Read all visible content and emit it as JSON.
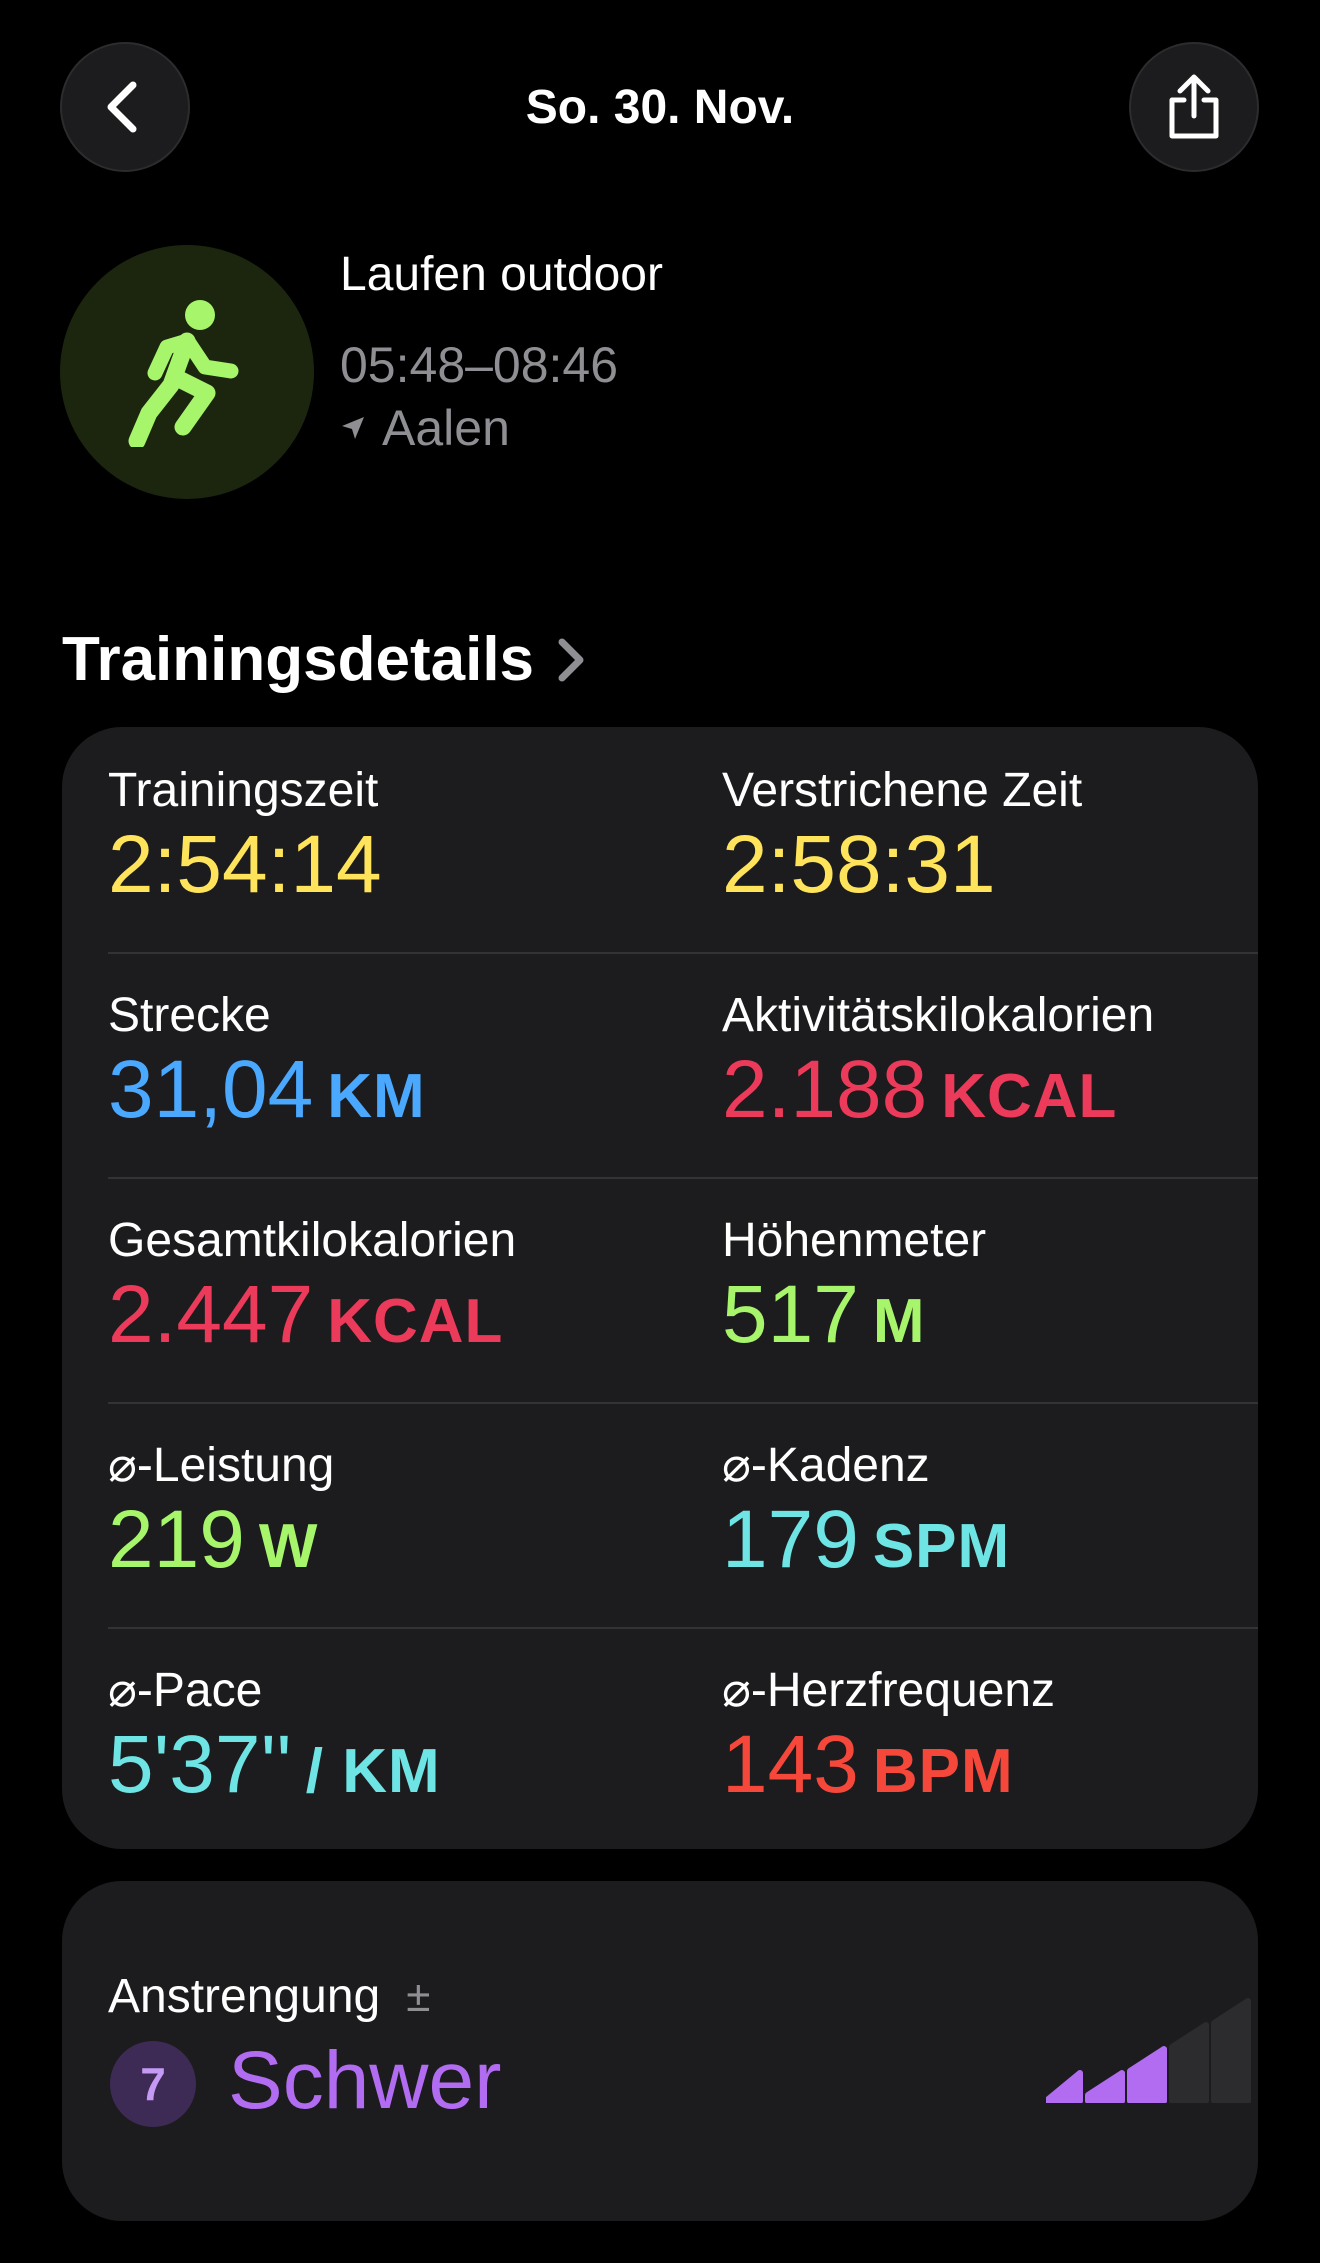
{
  "nav": {
    "title": "So. 30. Nov."
  },
  "workout": {
    "name": "Laufen outdoor",
    "time_range": "05:48–08:46",
    "location": "Aalen",
    "icon": "running-figure-icon",
    "accent": "#a6f56a"
  },
  "section": {
    "title": "Trainingsdetails"
  },
  "metrics": [
    {
      "left": {
        "label": "Trainingszeit",
        "value": "2:54:14",
        "unit": "",
        "color": "#ffe45b"
      },
      "right": {
        "label": "Verstrichene Zeit",
        "value": "2:58:31",
        "unit": "",
        "color": "#ffe45b"
      }
    },
    {
      "left": {
        "label": "Strecke",
        "value": "31,04",
        "unit": "KM",
        "color": "#4aa8ff"
      },
      "right": {
        "label": "Aktivitätskilokalorien",
        "value": "2.188",
        "unit": "KCAL",
        "color": "#ec3a5a"
      }
    },
    {
      "left": {
        "label": "Gesamtkilokalorien",
        "value": "2.447",
        "unit": "KCAL",
        "color": "#ec3a5a"
      },
      "right": {
        "label": "Höhenmeter",
        "value": "517",
        "unit": "M",
        "color": "#a6f56a"
      }
    },
    {
      "left": {
        "label": "⌀-Leistung",
        "value": "219",
        "unit": "W",
        "color": "#a6f56a"
      },
      "right": {
        "label": "⌀-Kadenz",
        "value": "179",
        "unit": "SPM",
        "color": "#6ee4e4"
      }
    },
    {
      "left": {
        "label": "⌀-Pace",
        "value": "5'37''",
        "unit": "/ KM",
        "color": "#6ee4e4"
      },
      "right": {
        "label": "⌀-Herzfrequenz",
        "value": "143",
        "unit": "BPM",
        "color": "#f5483b"
      }
    }
  ],
  "effort": {
    "label": "Anstrengung",
    "adjust_symbol": "±",
    "score": "7",
    "level": "Schwer",
    "color": "#b26cf2",
    "bars_filled": 3,
    "bars_total": 5
  }
}
